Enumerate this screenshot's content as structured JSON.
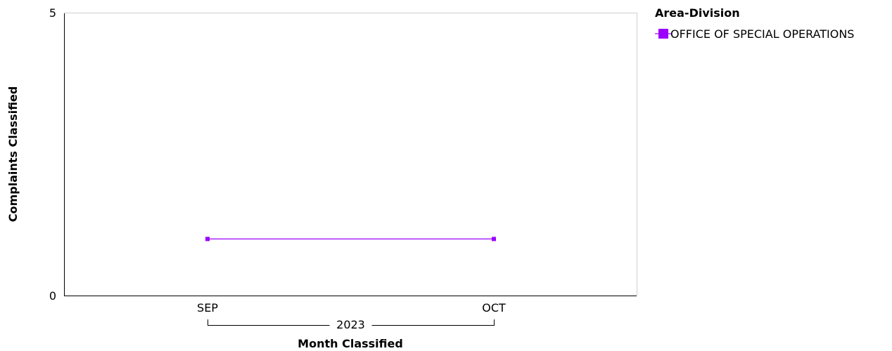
{
  "chart_data": {
    "type": "line",
    "xlabel": "Month Classified",
    "ylabel": "Complaints Classified",
    "categories": [
      "SEP",
      "OCT"
    ],
    "group_label": "2023",
    "ylim": [
      0,
      5
    ],
    "yticks": [
      "0",
      "5"
    ],
    "grid": false,
    "legend": {
      "title": "Area-Division",
      "placement": "top-right"
    },
    "series": [
      {
        "name": "OFFICE OF SPECIAL OPERATIONS",
        "color": "#9b00ff",
        "values": [
          1,
          1
        ]
      }
    ]
  }
}
